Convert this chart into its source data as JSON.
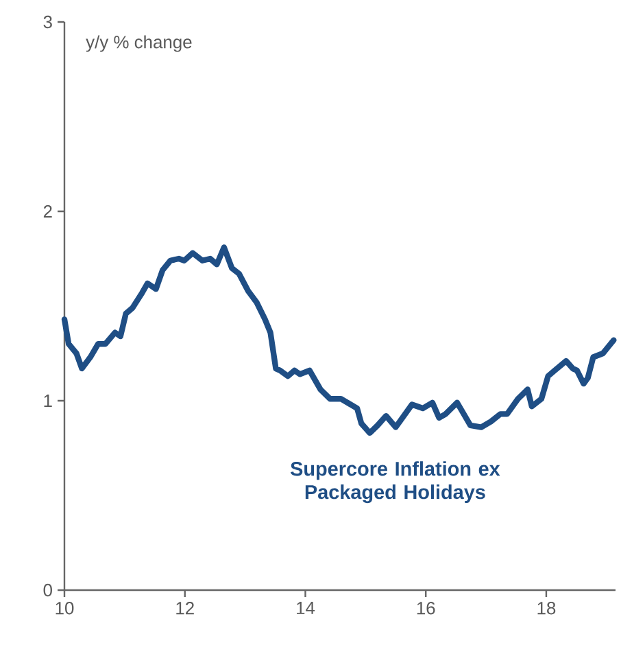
{
  "chart_data": {
    "type": "line",
    "ylabel": "y/y % change",
    "xlim": [
      10,
      19.15
    ],
    "xticks": [
      10,
      12,
      14,
      16,
      18
    ],
    "ylim": [
      0,
      3
    ],
    "yticks": [
      0,
      1,
      2,
      3
    ],
    "grid": false,
    "series": [
      {
        "name": "Supercore Inflation ex Packaged Holidays",
        "color": "#1f4e85",
        "x": [
          10,
          10.07,
          10.2,
          10.29,
          10.43,
          10.56,
          10.68,
          10.84,
          10.93,
          11.02,
          11.13,
          11.29,
          11.38,
          11.52,
          11.63,
          11.76,
          11.9,
          11.99,
          12.13,
          12.29,
          12.42,
          12.53,
          12.65,
          12.78,
          12.9,
          13.05,
          13.19,
          13.33,
          13.42,
          13.51,
          13.58,
          13.71,
          13.82,
          13.91,
          14.07,
          14.25,
          14.41,
          14.59,
          14.86,
          14.93,
          15.07,
          15.2,
          15.34,
          15.5,
          15.77,
          15.95,
          16.11,
          16.22,
          16.33,
          16.52,
          16.74,
          16.92,
          17.08,
          17.24,
          17.35,
          17.53,
          17.69,
          17.76,
          17.92,
          18.03,
          18.14,
          18.33,
          18.44,
          18.51,
          18.62,
          18.69,
          18.78,
          18.94,
          19.12
        ],
        "values": [
          1.43,
          1.3,
          1.25,
          1.17,
          1.23,
          1.3,
          1.3,
          1.36,
          1.34,
          1.46,
          1.49,
          1.57,
          1.62,
          1.59,
          1.69,
          1.74,
          1.75,
          1.74,
          1.78,
          1.74,
          1.75,
          1.72,
          1.81,
          1.7,
          1.67,
          1.58,
          1.52,
          1.43,
          1.36,
          1.17,
          1.16,
          1.13,
          1.16,
          1.14,
          1.16,
          1.06,
          1.01,
          1.01,
          0.96,
          0.88,
          0.83,
          0.87,
          0.92,
          0.86,
          0.98,
          0.96,
          0.99,
          0.91,
          0.93,
          0.99,
          0.87,
          0.86,
          0.89,
          0.93,
          0.93,
          1.01,
          1.06,
          0.97,
          1.01,
          1.13,
          1.16,
          1.21,
          1.17,
          1.16,
          1.09,
          1.12,
          1.23,
          1.25,
          1.32
        ]
      }
    ]
  }
}
